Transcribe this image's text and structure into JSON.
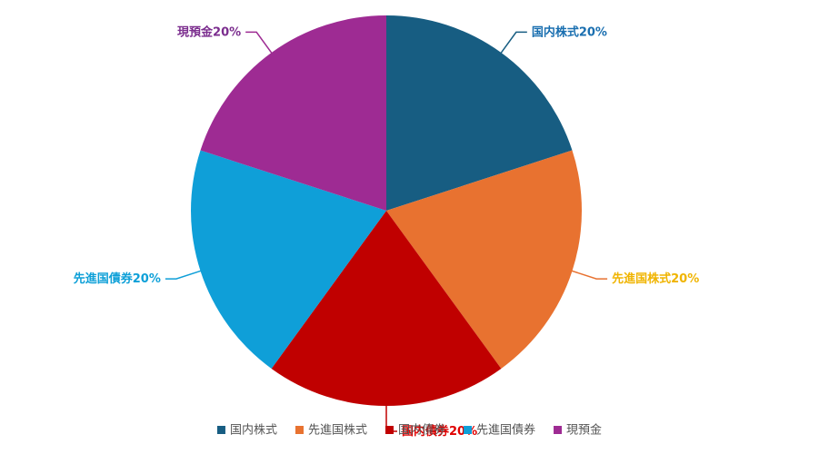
{
  "chart_data": {
    "type": "pie",
    "categories": [
      "国内株式",
      "先進国株式",
      "国内債券",
      "先進国債券",
      "現預金"
    ],
    "values": [
      20,
      20,
      20,
      20,
      20
    ],
    "value_labels": [
      "20%",
      "20%",
      "20%",
      "20%",
      "20%"
    ],
    "colors": [
      "#175d82",
      "#e87230",
      "#c00000",
      "#0f9fd8",
      "#9e2b93"
    ],
    "label_colors": [
      "#1a6fb0",
      "#f0b400",
      "#e00000",
      "#0ea0d8",
      "#7b2d8e"
    ],
    "legend": "bottom"
  }
}
